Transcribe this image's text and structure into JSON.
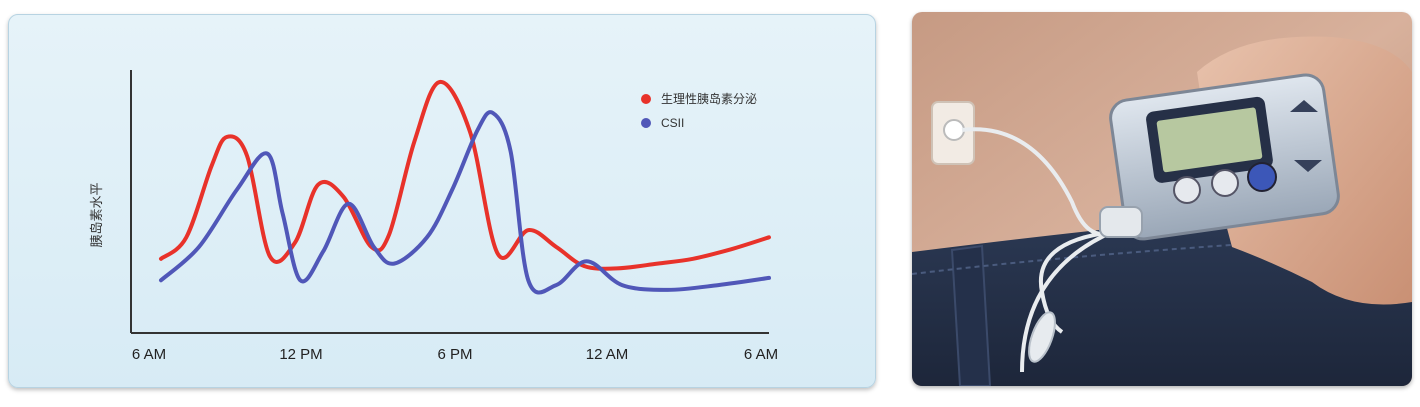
{
  "chart_data": {
    "type": "line",
    "ylabel": "胰岛素水平",
    "xlabel": "",
    "categories": [
      "6 AM",
      "12 PM",
      "6 PM",
      "12 AM",
      "6 AM"
    ],
    "legend_position": "top-right",
    "grid": false,
    "xlim": [
      0,
      24
    ],
    "ylim": [
      0,
      100
    ],
    "series": [
      {
        "name": "生理性胰岛素分泌",
        "color": "#e8322a",
        "x": [
          0,
          1,
          2,
          2.6,
          3.4,
          4.3,
          5.3,
          6.2,
          7.2,
          8.3,
          9.0,
          10.0,
          11.0,
          12.2,
          13.3,
          14.5,
          15.6,
          16.7,
          18.0,
          19.6,
          21.0,
          22.5,
          24
        ],
        "y": [
          21,
          30,
          60,
          72,
          64,
          22,
          28,
          52,
          47,
          26,
          31,
          70,
          95,
          74,
          23,
          33,
          26,
          18,
          17,
          19,
          21,
          25,
          30
        ]
      },
      {
        "name": "CSII",
        "color": "#5057b8",
        "x": [
          0,
          1.5,
          3.0,
          4.2,
          4.8,
          5.5,
          6.4,
          7.4,
          8.4,
          9.2,
          10.5,
          11.5,
          12.5,
          13.1,
          13.8,
          14.5,
          15.6,
          16.8,
          18.2,
          20.0,
          22.0,
          24
        ],
        "y": [
          12,
          26,
          50,
          65,
          40,
          12,
          24,
          44,
          26,
          19,
          30,
          50,
          75,
          82,
          66,
          12,
          10,
          20,
          10,
          8,
          10,
          13
        ]
      }
    ]
  },
  "colors": {
    "panel_bg": "#dcedf6",
    "axis": "#333333"
  }
}
